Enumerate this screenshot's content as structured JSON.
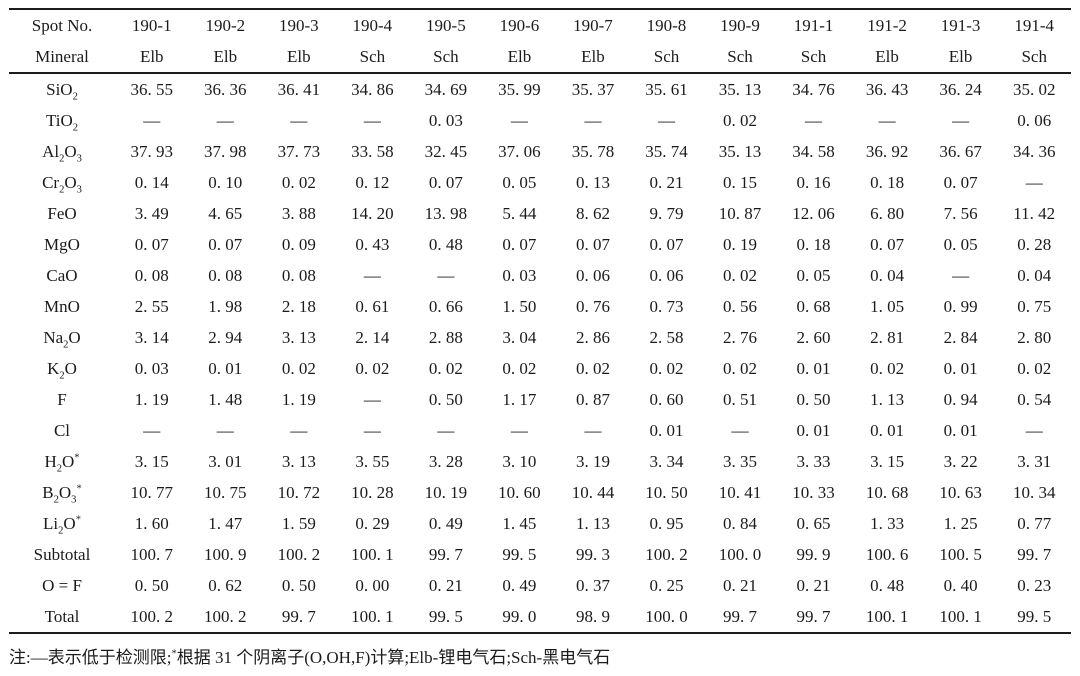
{
  "colors": {
    "background": "#ffffff",
    "text": "#1b1b1b",
    "rule": "#1b1b1b"
  },
  "table": {
    "header_rows": [
      {
        "label": "Spot No.",
        "cells": [
          "190-1",
          "190-2",
          "190-3",
          "190-4",
          "190-5",
          "190-6",
          "190-7",
          "190-8",
          "190-9",
          "191-1",
          "191-2",
          "191-3",
          "191-4"
        ]
      },
      {
        "label": "Mineral",
        "cells": [
          "Elb",
          "Elb",
          "Elb",
          "Sch",
          "Sch",
          "Elb",
          "Elb",
          "Sch",
          "Sch",
          "Sch",
          "Elb",
          "Elb",
          "Sch"
        ]
      }
    ],
    "rows": [
      {
        "label": "SiO~2~",
        "values": [
          "36. 55",
          "36. 36",
          "36. 41",
          "34. 86",
          "34. 69",
          "35. 99",
          "35. 37",
          "35. 61",
          "35. 13",
          "34. 76",
          "36. 43",
          "36. 24",
          "35. 02"
        ]
      },
      {
        "label": "TiO~2~",
        "values": [
          "—",
          "—",
          "—",
          "—",
          "0. 03",
          "—",
          "—",
          "—",
          "0. 02",
          "—",
          "—",
          "—",
          "0. 06"
        ]
      },
      {
        "label": "Al~2~O~3~",
        "values": [
          "37. 93",
          "37. 98",
          "37. 73",
          "33. 58",
          "32. 45",
          "37. 06",
          "35. 78",
          "35. 74",
          "35. 13",
          "34. 58",
          "36. 92",
          "36. 67",
          "34. 36"
        ]
      },
      {
        "label": "Cr~2~O~3~",
        "values": [
          "0. 14",
          "0. 10",
          "0. 02",
          "0. 12",
          "0. 07",
          "0. 05",
          "0. 13",
          "0. 21",
          "0. 15",
          "0. 16",
          "0. 18",
          "0. 07",
          "—"
        ]
      },
      {
        "label": "FeO",
        "values": [
          "3. 49",
          "4. 65",
          "3. 88",
          "14. 20",
          "13. 98",
          "5. 44",
          "8. 62",
          "9. 79",
          "10. 87",
          "12. 06",
          "6. 80",
          "7. 56",
          "11. 42"
        ]
      },
      {
        "label": "MgO",
        "values": [
          "0. 07",
          "0. 07",
          "0. 09",
          "0. 43",
          "0. 48",
          "0. 07",
          "0. 07",
          "0. 07",
          "0. 19",
          "0. 18",
          "0. 07",
          "0. 05",
          "0. 28"
        ]
      },
      {
        "label": "CaO",
        "values": [
          "0. 08",
          "0. 08",
          "0. 08",
          "—",
          "—",
          "0. 03",
          "0. 06",
          "0. 06",
          "0. 02",
          "0. 05",
          "0. 04",
          "—",
          "0. 04"
        ]
      },
      {
        "label": "MnO",
        "values": [
          "2. 55",
          "1. 98",
          "2. 18",
          "0. 61",
          "0. 66",
          "1. 50",
          "0. 76",
          "0. 73",
          "0. 56",
          "0. 68",
          "1. 05",
          "0. 99",
          "0. 75"
        ]
      },
      {
        "label": "Na~2~O",
        "values": [
          "3. 14",
          "2. 94",
          "3. 13",
          "2. 14",
          "2. 88",
          "3. 04",
          "2. 86",
          "2. 58",
          "2. 76",
          "2. 60",
          "2. 81",
          "2. 84",
          "2. 80"
        ]
      },
      {
        "label": "K~2~O",
        "values": [
          "0. 03",
          "0. 01",
          "0. 02",
          "0. 02",
          "0. 02",
          "0. 02",
          "0. 02",
          "0. 02",
          "0. 02",
          "0. 01",
          "0. 02",
          "0. 01",
          "0. 02"
        ]
      },
      {
        "label": "F",
        "values": [
          "1. 19",
          "1. 48",
          "1. 19",
          "—",
          "0. 50",
          "1. 17",
          "0. 87",
          "0. 60",
          "0. 51",
          "0. 50",
          "1. 13",
          "0. 94",
          "0. 54"
        ]
      },
      {
        "label": "Cl",
        "values": [
          "—",
          "—",
          "—",
          "—",
          "—",
          "—",
          "—",
          "0. 01",
          "—",
          "0. 01",
          "0. 01",
          "0. 01",
          "—"
        ]
      },
      {
        "label": "H~2~O^*^",
        "values": [
          "3. 15",
          "3. 01",
          "3. 13",
          "3. 55",
          "3. 28",
          "3. 10",
          "3. 19",
          "3. 34",
          "3. 35",
          "3. 33",
          "3. 15",
          "3. 22",
          "3. 31"
        ]
      },
      {
        "label": "B~2~O~3~^*^",
        "values": [
          "10. 77",
          "10. 75",
          "10. 72",
          "10. 28",
          "10. 19",
          "10. 60",
          "10. 44",
          "10. 50",
          "10. 41",
          "10. 33",
          "10. 68",
          "10. 63",
          "10. 34"
        ]
      },
      {
        "label": "Li~2~O^*^",
        "values": [
          "1. 60",
          "1. 47",
          "1. 59",
          "0. 29",
          "0. 49",
          "1. 45",
          "1. 13",
          "0. 95",
          "0. 84",
          "0. 65",
          "1. 33",
          "1. 25",
          "0. 77"
        ]
      },
      {
        "label": "Subtotal",
        "values": [
          "100. 7",
          "100. 9",
          "100. 2",
          "100. 1",
          "99. 7",
          "99. 5",
          "99. 3",
          "100. 2",
          "100. 0",
          "99. 9",
          "100. 6",
          "100. 5",
          "99. 7"
        ]
      },
      {
        "label": "O = F",
        "values": [
          "0. 50",
          "0. 62",
          "0. 50",
          "0. 00",
          "0. 21",
          "0. 49",
          "0. 37",
          "0. 25",
          "0. 21",
          "0. 21",
          "0. 48",
          "0. 40",
          "0. 23"
        ]
      },
      {
        "label": "Total",
        "values": [
          "100. 2",
          "100. 2",
          "99. 7",
          "100. 1",
          "99. 5",
          "99. 0",
          "98. 9",
          "100. 0",
          "99. 7",
          "99. 7",
          "100. 1",
          "100. 1",
          "99. 5"
        ]
      }
    ]
  },
  "footnote": "注:—表示低于检测限;^*^根据 31 个阴离子(O,OH,F)计算;Elb-锂电气石;Sch-黑电气石"
}
